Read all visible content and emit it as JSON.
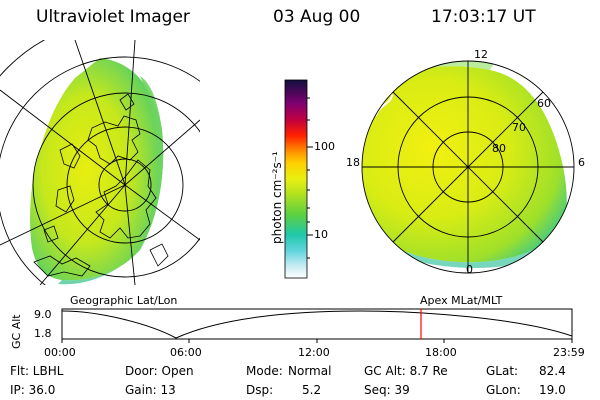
{
  "header": {
    "instrument": "Ultraviolet Imager",
    "date": "03 Aug 00",
    "time": "17:03:17 UT"
  },
  "colorbar": {
    "unit_label": "photon cm⁻²s⁻¹",
    "ticks": [
      "100",
      "10"
    ]
  },
  "geographic_panel": {
    "title": "Geographic Lat/Lon"
  },
  "apex_panel": {
    "title": "Apex MLat/MLT",
    "mlt_labels": [
      "12",
      "18",
      "6",
      "0"
    ],
    "mlat_labels": [
      "60",
      "70",
      "80"
    ]
  },
  "altitude_plot": {
    "ylabel": "GC Alt",
    "ymax_label": "9.0",
    "ymin_label": "1.8",
    "x_labels": [
      "00:00",
      "06:00",
      "12:00",
      "18:00",
      "23:59"
    ],
    "marker_color": "#ff0000"
  },
  "footer": {
    "flt": "Flt: LBHL",
    "door": "Door: Open",
    "mode_label": "Mode:",
    "mode_value": "Normal",
    "gc_alt": "GC Alt: 8.7 Re",
    "glat_label": "GLat:",
    "glat_value": "82.4",
    "ip": "IP: 36.0",
    "gain": "Gain: 13",
    "dsp_label": "Dsp:",
    "dsp_value": "5.2",
    "seq": "Seq: 39",
    "glon_label": "GLon:",
    "glon_value": "19.0"
  }
}
